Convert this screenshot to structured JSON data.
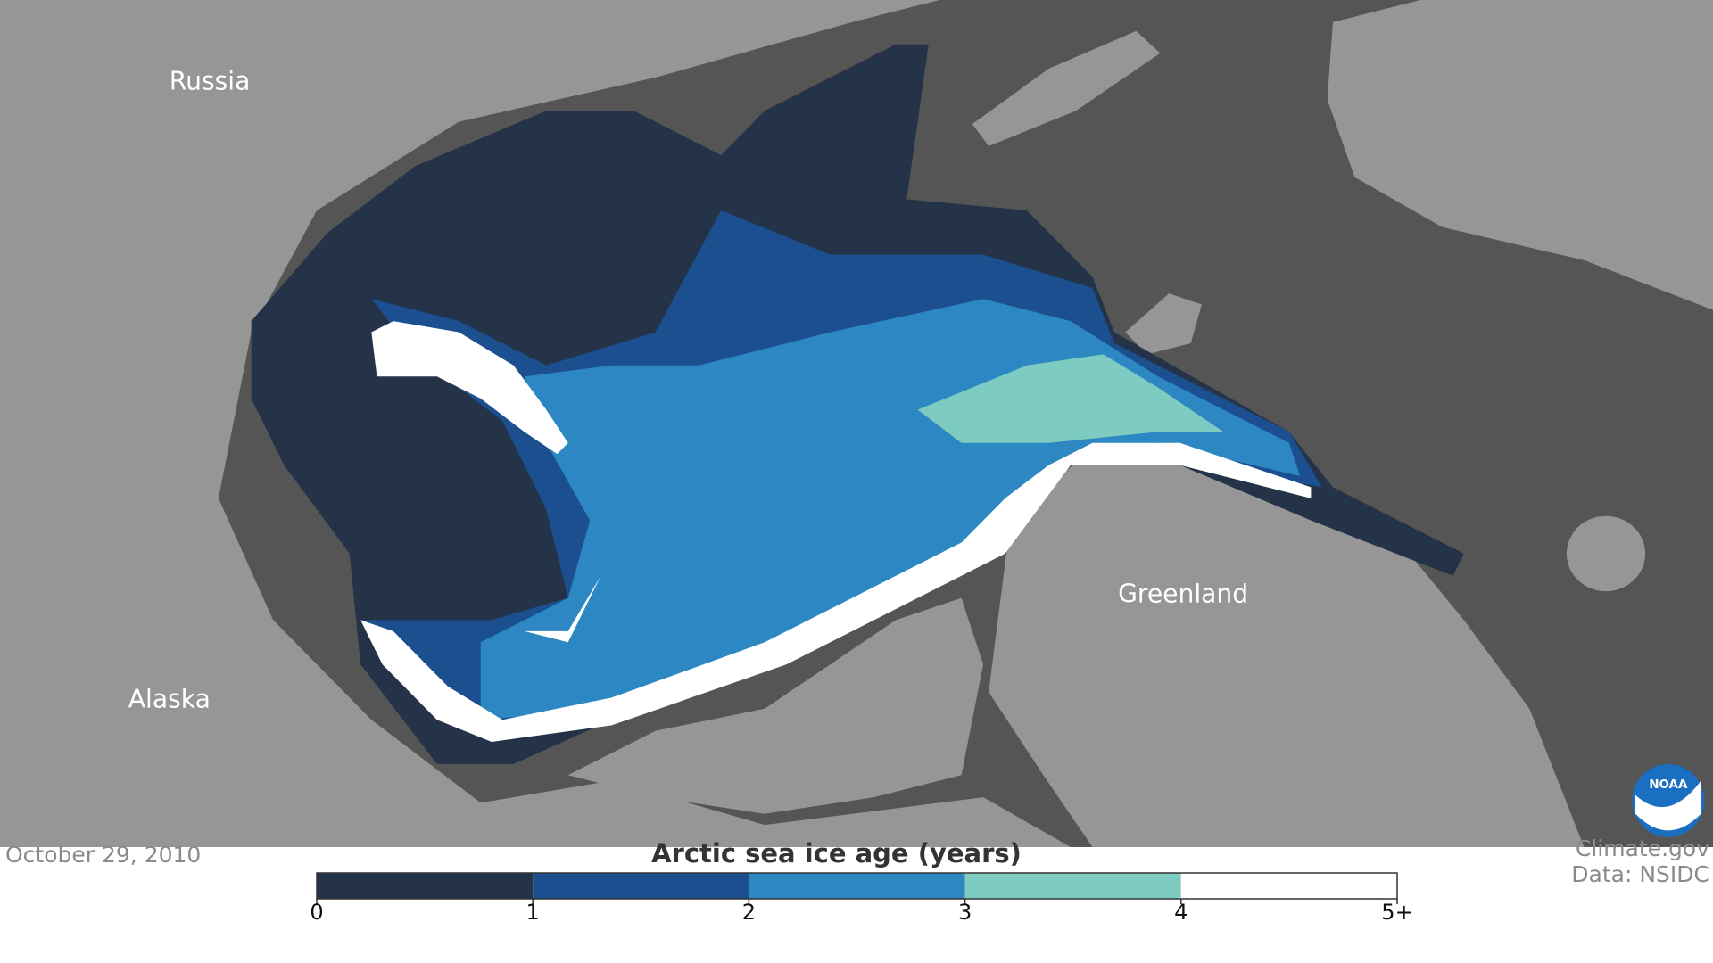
{
  "map": {
    "labels": [
      "Russia",
      "Alaska",
      "Greenland"
    ]
  },
  "date": "October 29, 2010",
  "legend": {
    "title": "Arctic sea ice age (years)",
    "colors": [
      "#243347",
      "#1b4f90",
      "#2c87c2",
      "#7dcbc1",
      "#ffffff"
    ],
    "ticks": [
      0,
      1,
      2,
      3,
      4,
      {
        "value": 5,
        "label": "5+"
      }
    ]
  },
  "credits": [
    "Climate.gov",
    "Data: NSIDC"
  ],
  "logo": "NOAA"
}
